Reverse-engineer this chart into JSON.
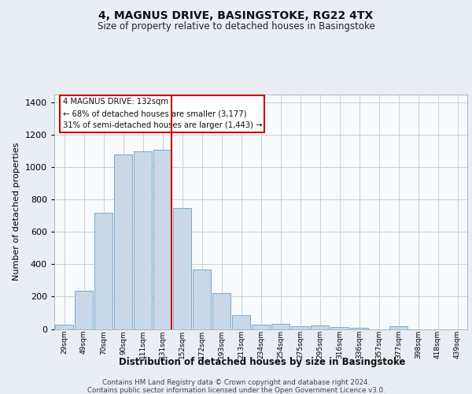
{
  "title": "4, MAGNUS DRIVE, BASINGSTOKE, RG22 4TX",
  "subtitle": "Size of property relative to detached houses in Basingstoke",
  "xlabel": "Distribution of detached houses by size in Basingstoke",
  "ylabel": "Number of detached properties",
  "footer_line1": "Contains HM Land Registry data © Crown copyright and database right 2024.",
  "footer_line2": "Contains public sector information licensed under the Open Government Licence v3.0.",
  "annotation_line1": "4 MAGNUS DRIVE: 132sqm",
  "annotation_line2": "← 68% of detached houses are smaller (3,177)",
  "annotation_line3": "31% of semi-detached houses are larger (1,443) →",
  "bar_color": "#c8d8e8",
  "bar_edge_color": "#7aabcc",
  "vline_color": "#cc0000",
  "categories": [
    "29sqm",
    "49sqm",
    "70sqm",
    "90sqm",
    "111sqm",
    "131sqm",
    "152sqm",
    "172sqm",
    "193sqm",
    "213sqm",
    "234sqm",
    "254sqm",
    "275sqm",
    "295sqm",
    "316sqm",
    "336sqm",
    "357sqm",
    "377sqm",
    "398sqm",
    "418sqm",
    "439sqm"
  ],
  "values": [
    28,
    235,
    720,
    1080,
    1100,
    1110,
    750,
    370,
    220,
    85,
    28,
    30,
    15,
    20,
    10,
    8,
    0,
    15,
    0,
    0,
    0
  ],
  "ylim": [
    0,
    1450
  ],
  "yticks": [
    0,
    200,
    400,
    600,
    800,
    1000,
    1200,
    1400
  ],
  "vline_index": 5,
  "background_color": "#e8eef4",
  "plot_background": "#f8fafc",
  "grid_color": "#c8d0dc"
}
